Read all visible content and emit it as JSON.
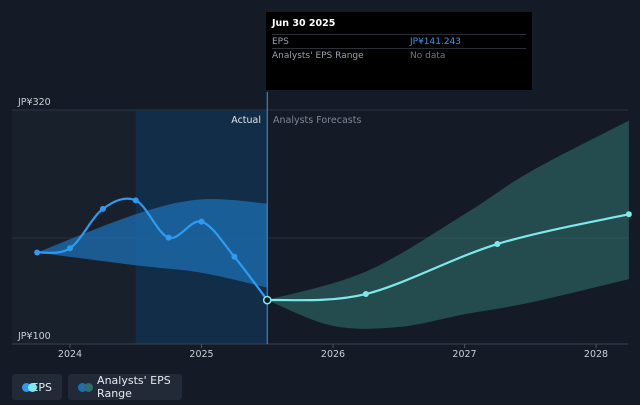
{
  "chart_data": {
    "type": "line",
    "y_axis": {
      "top_label": "JP¥320",
      "bottom_label": "JP¥100",
      "ylim": [
        100,
        320
      ]
    },
    "x_axis": {
      "tick_labels": [
        "2024",
        "2025",
        "2026",
        "2027",
        "2028"
      ],
      "tick_years": [
        2024,
        2025,
        2026,
        2027,
        2028
      ]
    },
    "divider_date": 2025.5,
    "section_labels": {
      "actual": "Actual",
      "forecast": "Analysts Forecasts"
    },
    "eps_actual": {
      "name": "EPS",
      "points": [
        [
          2023.75,
          186
        ],
        [
          2024.0,
          190
        ],
        [
          2024.25,
          227
        ],
        [
          2024.5,
          235
        ],
        [
          2024.75,
          200
        ],
        [
          2025.0,
          215
        ],
        [
          2025.25,
          182
        ],
        [
          2025.5,
          141.243
        ]
      ]
    },
    "eps_forecast": {
      "name": "EPS",
      "points": [
        [
          2025.5,
          141.243
        ],
        [
          2026.25,
          147
        ],
        [
          2027.25,
          194
        ],
        [
          2028.25,
          222
        ]
      ]
    },
    "past_range": {
      "upper": [
        [
          2023.75,
          186
        ],
        [
          2024.5,
          222
        ],
        [
          2025.0,
          236
        ],
        [
          2025.5,
          232
        ]
      ],
      "lower": [
        [
          2023.75,
          186
        ],
        [
          2024.5,
          174
        ],
        [
          2025.0,
          167
        ],
        [
          2025.5,
          153
        ]
      ]
    },
    "forecast_range": {
      "name": "Analysts' EPS Range",
      "upper": [
        [
          2025.5,
          141.243
        ],
        [
          2026.25,
          168
        ],
        [
          2027.0,
          222
        ],
        [
          2027.5,
          262
        ],
        [
          2028.25,
          310
        ]
      ],
      "lower": [
        [
          2025.5,
          141.243
        ],
        [
          2026.0,
          117
        ],
        [
          2026.5,
          116
        ],
        [
          2027.0,
          128
        ],
        [
          2027.5,
          139
        ],
        [
          2028.25,
          161
        ]
      ]
    },
    "colors": {
      "eps_actual": "#2e9bf0",
      "eps_forecast": "#7fe8ea",
      "past_range_fill": "#1d6fb3",
      "forecast_range_fill": "#2f6e6a",
      "background": "#151b26",
      "highlight_band": "#12304e"
    }
  },
  "tooltip": {
    "date": "Jun 30 2025",
    "rows": [
      {
        "label": "EPS",
        "value": "JP¥141.243"
      },
      {
        "label": "Analysts' EPS Range",
        "value": "No data"
      }
    ]
  },
  "legend": {
    "items": [
      {
        "label": "EPS",
        "color_a": "#2e9bf0",
        "color_b": "#7fe8ea"
      },
      {
        "label": "Analysts' EPS Range",
        "color_a": "#1d6fb3",
        "color_b": "#2f6e6a"
      }
    ]
  }
}
